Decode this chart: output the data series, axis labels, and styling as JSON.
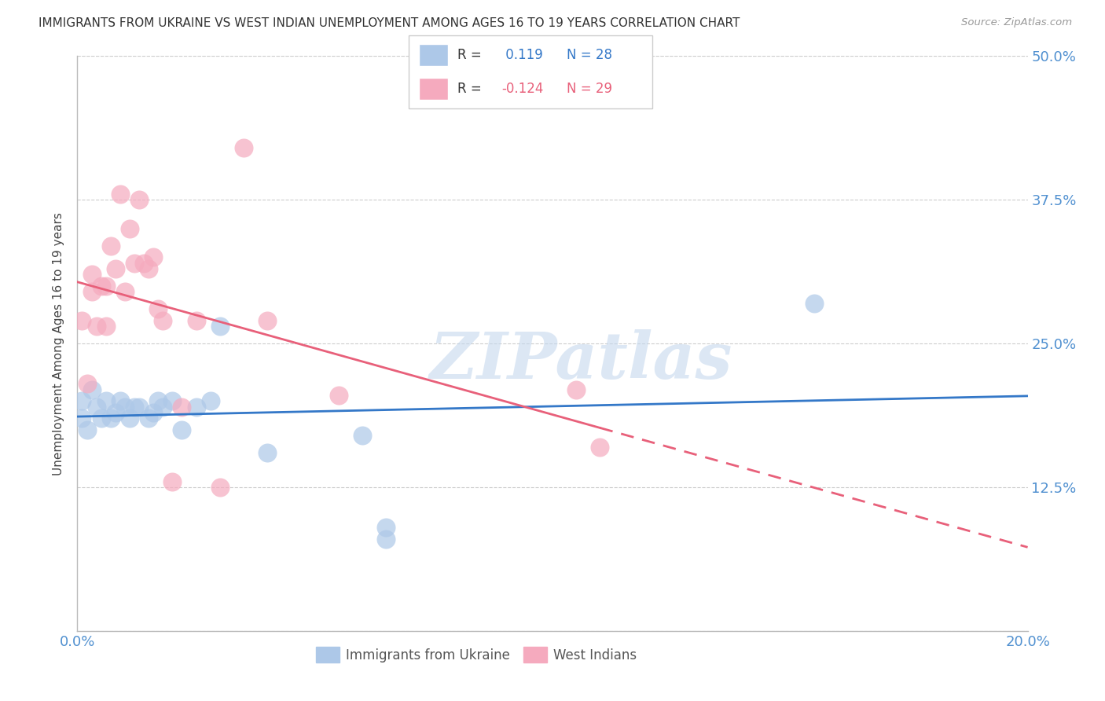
{
  "title": "IMMIGRANTS FROM UKRAINE VS WEST INDIAN UNEMPLOYMENT AMONG AGES 16 TO 19 YEARS CORRELATION CHART",
  "source": "Source: ZipAtlas.com",
  "ylabel": "Unemployment Among Ages 16 to 19 years",
  "xlim": [
    0.0,
    0.2
  ],
  "ylim": [
    0.0,
    0.5
  ],
  "xtick_positions": [
    0.0,
    0.05,
    0.1,
    0.15,
    0.2
  ],
  "xticklabels": [
    "0.0%",
    "",
    "",
    "",
    "20.0%"
  ],
  "ytick_positions": [
    0.0,
    0.125,
    0.25,
    0.375,
    0.5
  ],
  "yticklabels_right": [
    "",
    "12.5%",
    "25.0%",
    "37.5%",
    "50.0%"
  ],
  "ukraine_x": [
    0.001,
    0.001,
    0.002,
    0.003,
    0.004,
    0.005,
    0.006,
    0.007,
    0.008,
    0.009,
    0.01,
    0.011,
    0.012,
    0.013,
    0.015,
    0.016,
    0.017,
    0.018,
    0.02,
    0.022,
    0.025,
    0.028,
    0.03,
    0.04,
    0.06,
    0.065,
    0.065,
    0.155
  ],
  "ukraine_y": [
    0.185,
    0.2,
    0.175,
    0.21,
    0.195,
    0.185,
    0.2,
    0.185,
    0.19,
    0.2,
    0.195,
    0.185,
    0.195,
    0.195,
    0.185,
    0.19,
    0.2,
    0.195,
    0.2,
    0.175,
    0.195,
    0.2,
    0.265,
    0.155,
    0.17,
    0.08,
    0.09,
    0.285
  ],
  "west_indian_x": [
    0.001,
    0.002,
    0.003,
    0.003,
    0.004,
    0.005,
    0.006,
    0.006,
    0.007,
    0.008,
    0.009,
    0.01,
    0.011,
    0.012,
    0.013,
    0.014,
    0.015,
    0.016,
    0.017,
    0.018,
    0.02,
    0.022,
    0.025,
    0.03,
    0.035,
    0.04,
    0.055,
    0.105,
    0.11
  ],
  "west_indian_y": [
    0.27,
    0.215,
    0.295,
    0.31,
    0.265,
    0.3,
    0.265,
    0.3,
    0.335,
    0.315,
    0.38,
    0.295,
    0.35,
    0.32,
    0.375,
    0.32,
    0.315,
    0.325,
    0.28,
    0.27,
    0.13,
    0.195,
    0.27,
    0.125,
    0.42,
    0.27,
    0.205,
    0.21,
    0.16
  ],
  "ukraine_color": "#adc8e8",
  "west_indian_color": "#f5aabe",
  "ukraine_line_color": "#3478c8",
  "west_indian_line_color": "#e8607a",
  "ukraine_R": 0.119,
  "ukraine_N": 28,
  "west_indian_R": -0.124,
  "west_indian_N": 29,
  "watermark": "ZIPatlas",
  "background_color": "#ffffff",
  "grid_color": "#cccccc",
  "tick_color": "#5090d0",
  "label_color": "#444444"
}
